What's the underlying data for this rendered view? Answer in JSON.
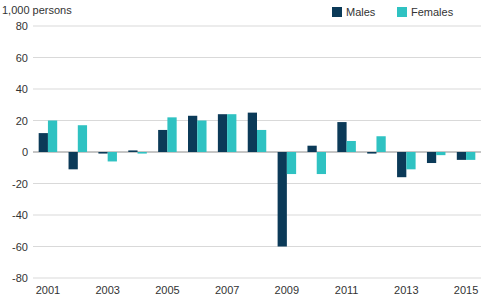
{
  "chart_data": {
    "type": "bar",
    "y_label": "1,000 persons",
    "categories": [
      "2001",
      null,
      "2003",
      null,
      "2005",
      null,
      "2007",
      null,
      "2009",
      null,
      "2011",
      null,
      "2013",
      null,
      "2015"
    ],
    "series": [
      {
        "name": "Males",
        "color": "#0b3a58",
        "values": [
          12,
          -11,
          -1,
          1,
          14,
          23,
          24,
          25,
          -60,
          4,
          19,
          -1,
          -16,
          -7,
          -5
        ]
      },
      {
        "name": "Females",
        "color": "#2fc2c2",
        "values": [
          20,
          17,
          -6,
          -1,
          22,
          20,
          24,
          14,
          -14,
          -14,
          7,
          10,
          -11,
          -2,
          -5
        ]
      }
    ],
    "ylim": [
      -80,
      80
    ],
    "yticks": [
      -80,
      -60,
      -40,
      -20,
      0,
      20,
      40,
      60,
      80
    ],
    "grid": true,
    "legend": "top-right"
  }
}
